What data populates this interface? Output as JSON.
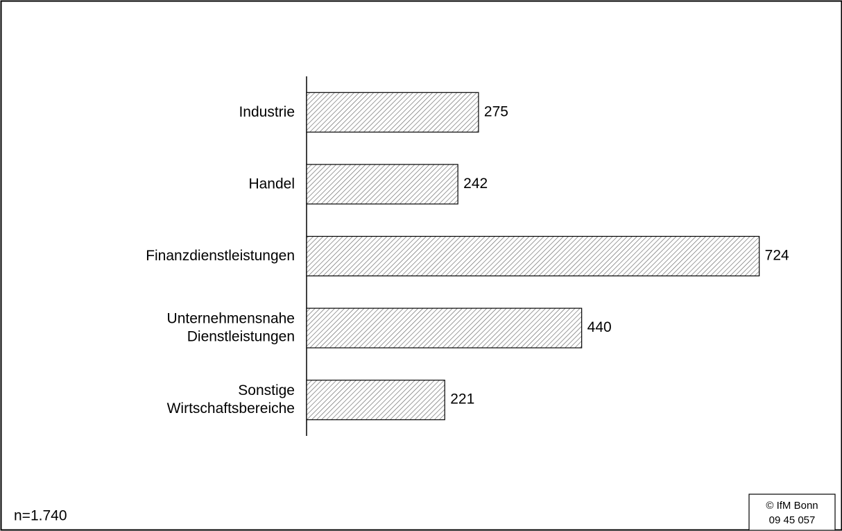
{
  "chart_data": {
    "type": "bar",
    "orientation": "horizontal",
    "categories": [
      "Industrie",
      "Handel",
      "Finanzdienstleistungen",
      "Unternehmensnahe\nDienstleistungen",
      "Sonstige\nWirtschaftsbereiche"
    ],
    "values": [
      275,
      242,
      724,
      440,
      221
    ],
    "color": "#ffffff",
    "hatch": "#555555",
    "note": "n=1.740",
    "source": [
      "© IfM Bonn",
      "09  45  057"
    ]
  }
}
